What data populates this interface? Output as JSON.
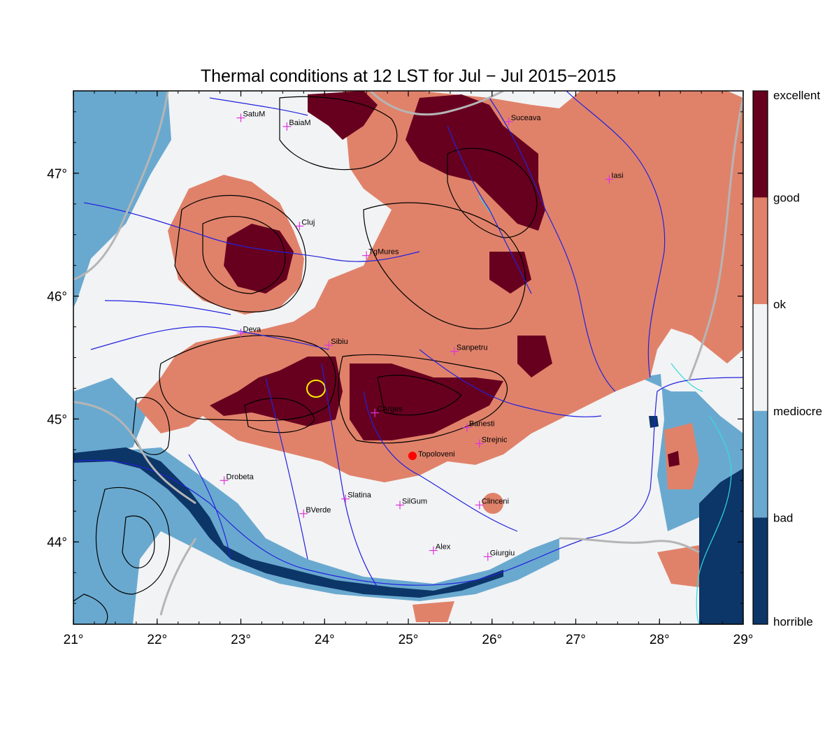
{
  "title": "Thermal conditions at 12 LST for Jul − Jul  2015−2015",
  "colors": {
    "excellent": "#67001f",
    "good": "#e0826a",
    "ok": "#f2f3f5",
    "mediocre": "#6aa9cf",
    "bad": "#0c3568",
    "river": "#2222dd",
    "border": "#b5b5b5",
    "contour": "#000000",
    "city_marker": "#dd33dd",
    "highlight": "#ff0000",
    "yellow_contour": "#ffee00",
    "lake": "#33dddd"
  },
  "map": {
    "lon_range": [
      21,
      29
    ],
    "lat_range": [
      43.33,
      47.67
    ],
    "lon_ticks": [
      "21°",
      "22°",
      "23°",
      "24°",
      "25°",
      "26°",
      "27°",
      "28°",
      "29°"
    ],
    "lat_ticks": [
      {
        "value": 47,
        "label": "47°"
      },
      {
        "value": 46,
        "label": "46°"
      },
      {
        "value": 45,
        "label": "45°"
      },
      {
        "value": 44,
        "label": "44°"
      }
    ]
  },
  "legend": {
    "labels": [
      "excellent",
      "good",
      "ok",
      "mediocre",
      "bad",
      "horrible"
    ]
  },
  "cities": [
    {
      "name": "SatuM",
      "lon": 23.0,
      "lat": 47.45
    },
    {
      "name": "BaiaM",
      "lon": 23.55,
      "lat": 47.38
    },
    {
      "name": "Suceava",
      "lon": 26.2,
      "lat": 47.42
    },
    {
      "name": "Iasi",
      "lon": 27.4,
      "lat": 46.95
    },
    {
      "name": "Cluj",
      "lon": 23.7,
      "lat": 46.57
    },
    {
      "name": "TgMures",
      "lon": 24.5,
      "lat": 46.33
    },
    {
      "name": "Deva",
      "lon": 23.0,
      "lat": 45.7
    },
    {
      "name": "Sibiu",
      "lon": 24.05,
      "lat": 45.6
    },
    {
      "name": "Sanpetru",
      "lon": 25.55,
      "lat": 45.55
    },
    {
      "name": "CArges",
      "lon": 24.6,
      "lat": 45.05
    },
    {
      "name": "Banesti",
      "lon": 25.7,
      "lat": 44.93
    },
    {
      "name": "Strejnic",
      "lon": 25.85,
      "lat": 44.8
    },
    {
      "name": "Drobeta",
      "lon": 22.8,
      "lat": 44.5
    },
    {
      "name": "Slatina",
      "lon": 24.25,
      "lat": 44.35
    },
    {
      "name": "SilGum",
      "lon": 24.9,
      "lat": 44.3
    },
    {
      "name": "Clinceni",
      "lon": 25.85,
      "lat": 44.3
    },
    {
      "name": "BVerde",
      "lon": 23.75,
      "lat": 44.23
    },
    {
      "name": "Alex",
      "lon": 25.3,
      "lat": 43.93
    },
    {
      "name": "Giurgiu",
      "lon": 25.95,
      "lat": 43.88
    }
  ],
  "highlight_city": {
    "name": "Topoloveni",
    "lon": 25.05,
    "lat": 44.7
  }
}
